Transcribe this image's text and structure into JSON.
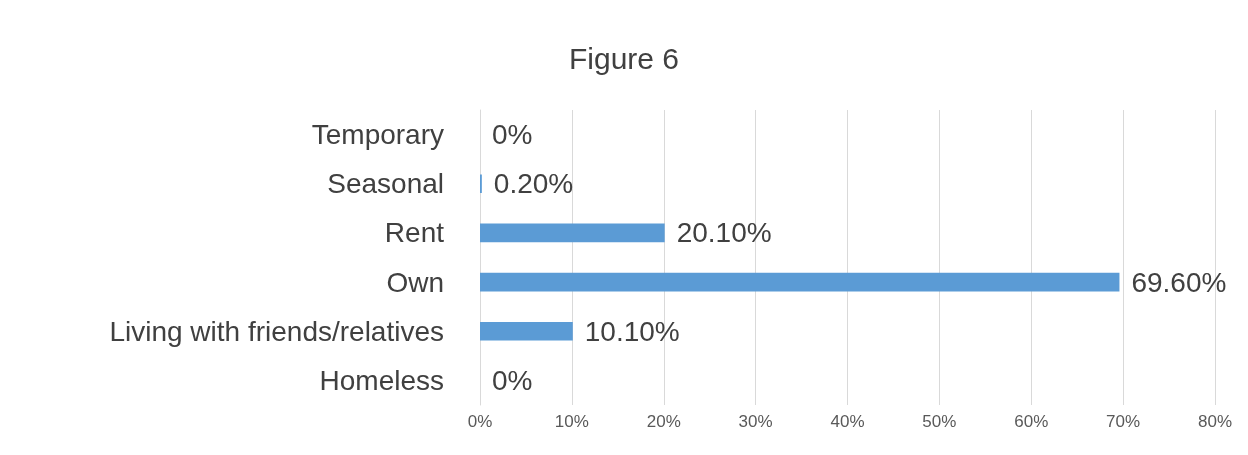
{
  "chart_data": {
    "type": "bar",
    "orientation": "horizontal",
    "title": "Figure 6",
    "categories": [
      "Temporary",
      "Seasonal",
      "Rent",
      "Own",
      "Living with friends/relatives",
      "Homeless"
    ],
    "values": [
      0,
      0.2,
      20.1,
      69.6,
      10.1,
      0
    ],
    "value_labels": [
      "0%",
      "0.20%",
      "20.10%",
      "69.60%",
      "10.10%",
      "0%"
    ],
    "color": "#5b9bd5",
    "xlim": [
      0,
      80
    ],
    "xticks": [
      {
        "value": 0,
        "label": "0%"
      },
      {
        "value": 10,
        "label": "10%"
      },
      {
        "value": 20,
        "label": "20%"
      },
      {
        "value": 30,
        "label": "30%"
      },
      {
        "value": 40,
        "label": "40%"
      },
      {
        "value": 50,
        "label": "50%"
      },
      {
        "value": 60,
        "label": "60%"
      },
      {
        "value": 70,
        "label": "70%"
      },
      {
        "value": 80,
        "label": "80%"
      }
    ],
    "grid": "x"
  }
}
